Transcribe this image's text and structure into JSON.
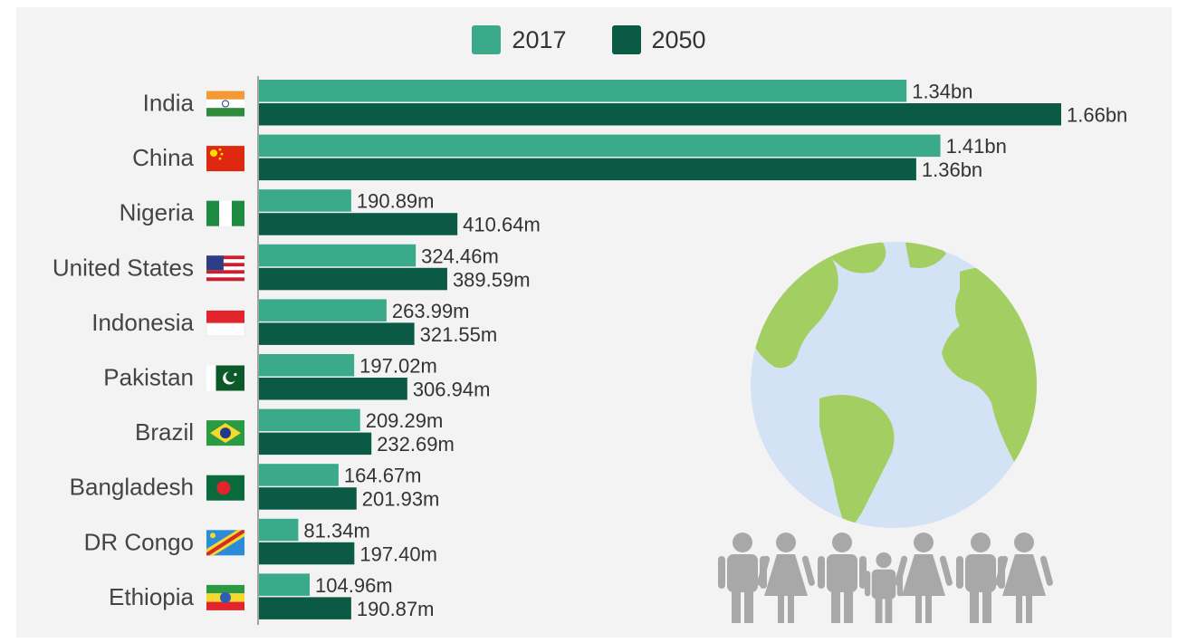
{
  "legend": [
    {
      "label": "2017",
      "color": "#3aaa8a"
    },
    {
      "label": "2050",
      "color": "#0b5a45"
    }
  ],
  "chart_data": {
    "type": "bar",
    "orientation": "horizontal",
    "unit_note": "population",
    "categories": [
      "India",
      "China",
      "Nigeria",
      "United States",
      "Indonesia",
      "Pakistan",
      "Brazil",
      "Bangladesh",
      "DR Congo",
      "Ethiopia"
    ],
    "series": [
      {
        "name": "2017",
        "color": "#3aaa8a",
        "values": [
          1340,
          1410,
          190.89,
          324.46,
          263.99,
          197.02,
          209.29,
          164.67,
          81.34,
          104.96
        ],
        "labels": [
          "1.34bn",
          "1.41bn",
          "190.89m",
          "324.46m",
          "263.99m",
          "197.02m",
          "209.29m",
          "164.67m",
          "81.34m",
          "104.96m"
        ]
      },
      {
        "name": "2050",
        "color": "#0b5a45",
        "values": [
          1660,
          1360,
          410.64,
          389.59,
          321.55,
          306.94,
          232.69,
          201.93,
          197.4,
          190.87
        ],
        "labels": [
          "1.66bn",
          "1.36bn",
          "410.64m",
          "389.59m",
          "321.55m",
          "306.94m",
          "232.69m",
          "201.93m",
          "197.40m",
          "190.87m"
        ]
      }
    ],
    "xlim": [
      0,
      1660
    ],
    "grid": false,
    "legend_position": "top-center"
  },
  "flags": [
    "india-flag-icon",
    "china-flag-icon",
    "nigeria-flag-icon",
    "usa-flag-icon",
    "indonesia-flag-icon",
    "pakistan-flag-icon",
    "brazil-flag-icon",
    "bangladesh-flag-icon",
    "drcongo-flag-icon",
    "ethiopia-flag-icon"
  ],
  "illustration": [
    "globe-icon",
    "people-icon"
  ]
}
